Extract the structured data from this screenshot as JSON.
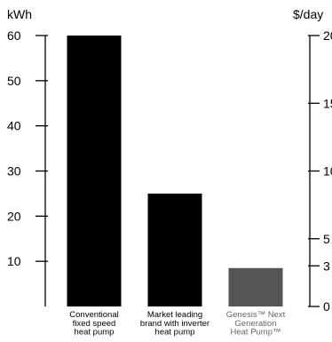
{
  "chart_data": {
    "type": "bar",
    "title": "",
    "xlabel": "",
    "left_axis": {
      "unit_label": "kWh",
      "ylim": [
        0,
        60
      ],
      "ticks": [
        10,
        20,
        30,
        40,
        50,
        60
      ]
    },
    "right_axis": {
      "unit_label": "$/day",
      "ylim": [
        0,
        20
      ],
      "ticks": [
        "0",
        "3",
        "5",
        "10",
        "15",
        "20"
      ],
      "tick_positions_in_data_units": [
        0,
        3,
        5,
        10,
        15,
        20
      ]
    },
    "categories": [
      [
        "Conventional",
        "fixed speed",
        "heat pump"
      ],
      [
        "Market leading",
        "brand with inverter",
        "heat pump"
      ],
      [
        "Genesis™ Next",
        "Generation",
        "Heat Pump™"
      ]
    ],
    "values": [
      60,
      25,
      8.5
    ],
    "bar_colors": [
      "#000000",
      "#000000",
      "#555555"
    ],
    "category_label_colors": [
      "#000000",
      "#000000",
      "#666666"
    ],
    "grid": false
  }
}
